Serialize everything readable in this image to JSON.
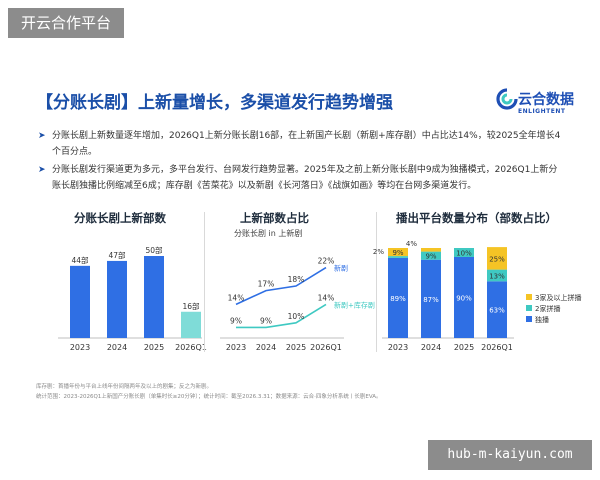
{
  "watermarks": {
    "top_left": "开云合作平台",
    "bottom_right": "hub-m-kaiyun.com"
  },
  "colors": {
    "primary_blue": "#2f6fe4",
    "teal": "#3fc9c2",
    "yellow": "#f5c425",
    "title_blue": "#1b4fa8",
    "light_teal": "#7fdcd8"
  },
  "slide": {
    "headline": "【分账长剧】上新量增长，多渠道发行趋势增强",
    "logo": {
      "cn": "云合数据",
      "en": "ENLIGHTENT",
      "icon": "yunhe-logo-icon"
    },
    "bullets": [
      "分账长剧上新数量逐年增加，2026Q1上新分账长剧16部，在上新国产长剧（新剧+库存剧）中占比达14%，较2025全年增长4个百分点。",
      "分账长剧发行渠道更为多元，多平台发行、台网发行趋势显著。2025年及之前上新分账长剧中9成为独播模式，2026Q1上新分账长剧独播比例缩减至6成；库存剧《苦菜花》以及新剧《长河落日》《战旗如画》等均在台网多渠道发行。"
    ],
    "footnotes": [
      "库存剧：首播年份与平台上线年份间隔两年及以上的剧集；反之为新剧。",
      "统计范围：2023-2026Q1上新国产分账长剧（单集时长≥20分钟）；统计时间：截至2026.3.31；数据来源：云合·四象分析系统丨长剧EVA。"
    ]
  },
  "chart_data": [
    {
      "type": "bar",
      "title": "分账长剧上新部数",
      "categories": [
        "2023",
        "2024",
        "2025",
        "2026Q1"
      ],
      "values": [
        44,
        47,
        50,
        16
      ],
      "data_labels": [
        "44部",
        "47部",
        "50部",
        "16部"
      ],
      "bar_colors": [
        "#2f6fe4",
        "#2f6fe4",
        "#2f6fe4",
        "#7fdcd8"
      ]
    },
    {
      "type": "line",
      "title": "上新部数占比",
      "subtitle": "分账长剧 in 上新剧",
      "categories": [
        "2023",
        "2024",
        "2025",
        "2026Q1"
      ],
      "series": [
        {
          "name": "新剧",
          "values": [
            14,
            17,
            18,
            22
          ],
          "labels": [
            "14%",
            "17%",
            "18%",
            "22%"
          ],
          "color": "#2f6fe4"
        },
        {
          "name": "新剧+库存剧",
          "values": [
            9,
            9,
            10,
            14
          ],
          "labels": [
            "9%",
            "9%",
            "10%",
            "14%"
          ],
          "color": "#3fc9c2"
        }
      ]
    },
    {
      "type": "bar",
      "title": "播出平台数量分布（部数占比）",
      "stacked": true,
      "categories": [
        "2023",
        "2024",
        "2025",
        "2026Q1"
      ],
      "series": [
        {
          "name": "独播",
          "values": [
            89,
            87,
            90,
            63
          ],
          "labels": [
            "89%",
            "87%",
            "90%",
            "63%"
          ],
          "color": "#2f6fe4"
        },
        {
          "name": "2家拼播",
          "values": [
            2,
            9,
            10,
            13
          ],
          "labels": [
            "2%",
            "9%",
            "10%",
            "13%"
          ],
          "color": "#3fc9c2"
        },
        {
          "name": "3家及以上拼播",
          "values": [
            9,
            4,
            0,
            25
          ],
          "labels": [
            "9%",
            "4%",
            "",
            "25%"
          ],
          "color": "#f5c425"
        }
      ],
      "legend_order": [
        "3家及以上拼播",
        "2家拼播",
        "独播"
      ],
      "legend_position": "right"
    }
  ]
}
